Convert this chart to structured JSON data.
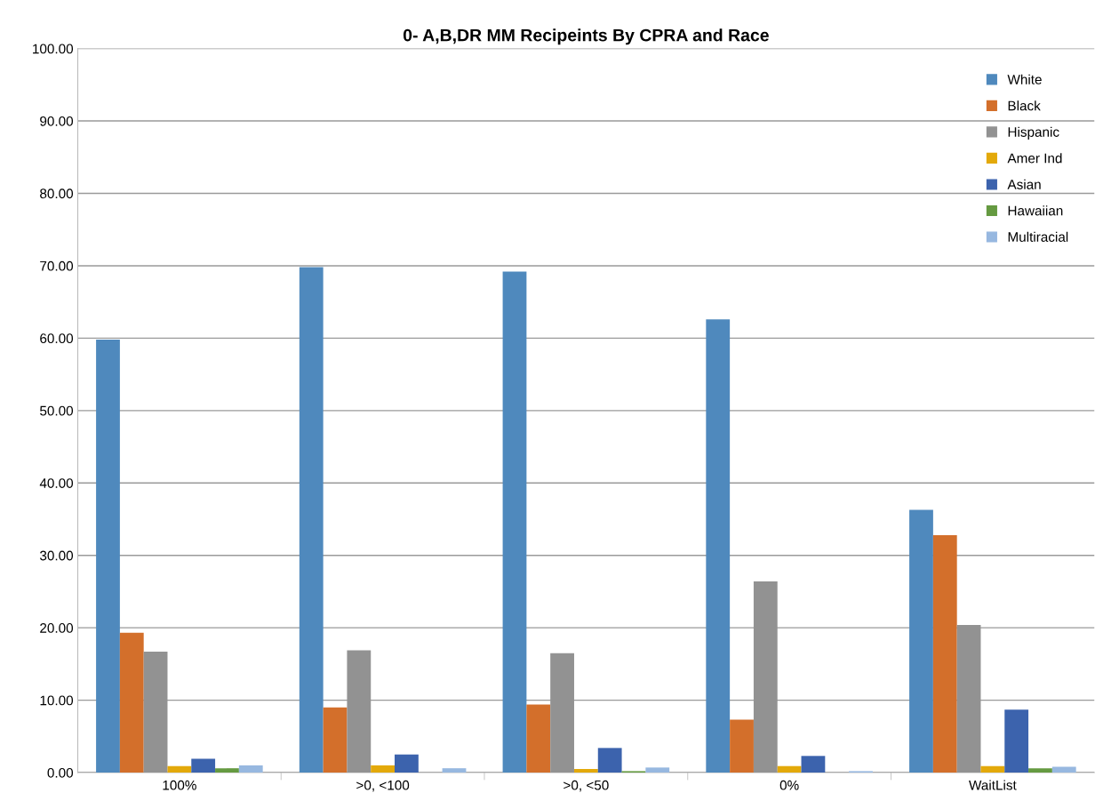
{
  "chart_data": {
    "type": "bar",
    "title": "0- A,B,DR MM Recipeints By CPRA and Race",
    "categories": [
      "100%",
      ">0, <100",
      ">0, <50",
      "0%",
      "WaitList"
    ],
    "series": [
      {
        "name": "White",
        "color": "#4f89bd",
        "values": [
          59.8,
          69.8,
          69.2,
          62.6,
          36.3
        ]
      },
      {
        "name": "Black",
        "color": "#d36f2b",
        "values": [
          19.3,
          9.0,
          9.4,
          7.3,
          32.8
        ]
      },
      {
        "name": "Hispanic",
        "color": "#929292",
        "values": [
          16.7,
          16.9,
          16.5,
          26.4,
          20.4
        ]
      },
      {
        "name": "Amer Ind",
        "color": "#e3a90a",
        "values": [
          0.9,
          1.0,
          0.5,
          0.9,
          0.9
        ]
      },
      {
        "name": "Asian",
        "color": "#3c63ad",
        "values": [
          1.9,
          2.5,
          3.4,
          2.3,
          8.7
        ]
      },
      {
        "name": "Hawaiian",
        "color": "#659a41",
        "values": [
          0.6,
          0,
          0.2,
          0,
          0.6
        ]
      },
      {
        "name": "Multiracial",
        "color": "#97b8e0",
        "values": [
          1.0,
          0.6,
          0.7,
          0.2,
          0.8
        ]
      }
    ],
    "ylim": [
      0,
      100
    ],
    "yticks": [
      {
        "value": 0,
        "label": "0.00"
      },
      {
        "value": 10,
        "label": "10.00"
      },
      {
        "value": 20,
        "label": "20.00"
      },
      {
        "value": 30,
        "label": "30.00"
      },
      {
        "value": 40,
        "label": "40.00"
      },
      {
        "value": 50,
        "label": "50.00"
      },
      {
        "value": 60,
        "label": "60.00"
      },
      {
        "value": 70,
        "label": "70.00"
      },
      {
        "value": 80,
        "label": "80.00"
      },
      {
        "value": 90,
        "label": "90.00"
      },
      {
        "value": 100,
        "label": "100.00"
      }
    ],
    "grid": "y",
    "legend": "top right"
  }
}
